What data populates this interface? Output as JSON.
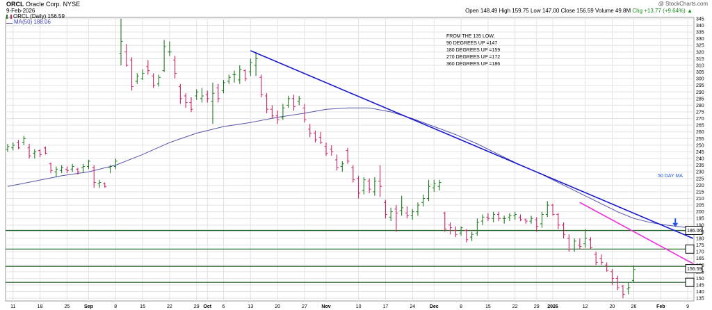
{
  "header": {
    "symbol": "ORCL",
    "company": "Oracle Corp.",
    "exchange": "NYSE",
    "date": "9-Feb-2026",
    "legend_price": "ORCL (Daily) 156.59",
    "legend_ma": "MA(50) 188.06",
    "watermark": "@ StockCharts.com",
    "quote": {
      "open": "Open 148.49",
      "high": "High 159.75",
      "low": "Low 147.00",
      "close": "Close 156.59",
      "volume": "Volume 49.8M",
      "chg": "Chg +13.77 (+9.64%)",
      "arrow": "▲"
    }
  },
  "annotations": {
    "note_lines": [
      "FROM THE 135 LOW,",
      "90 DEGREES UP =147",
      "180 DEGREES UP =159",
      "270 DEGREES UP =172",
      "360 DEGREES UP =186"
    ],
    "ma_label": "50 DAY MA"
  },
  "colors": {
    "up_bar": "#1f7a1f",
    "down_bar": "#cc2266",
    "ma_line": "#5555aa",
    "blue_trendline": "#1a1acc",
    "magenta_trendline": "#ee33dd",
    "support_line": "#1a5c1a",
    "grid": "#e3e3e3",
    "arrow": "#2255dd"
  },
  "chart_data": {
    "type": "ohlc",
    "ylim": [
      133,
      346
    ],
    "y_ticks": [
      135,
      140,
      145,
      150,
      155,
      160,
      165,
      170,
      175,
      180,
      185,
      190,
      195,
      200,
      205,
      210,
      215,
      220,
      225,
      230,
      235,
      240,
      245,
      250,
      255,
      260,
      265,
      270,
      275,
      280,
      285,
      290,
      295,
      300,
      305,
      310,
      315,
      320,
      325,
      330,
      335,
      340,
      345
    ],
    "x_ticks": [
      {
        "label": "11",
        "t": 1
      },
      {
        "label": "18",
        "t": 6
      },
      {
        "label": "25",
        "t": 11
      },
      {
        "label": "Sep",
        "t": 15
      },
      {
        "label": "8",
        "t": 20
      },
      {
        "label": "15",
        "t": 25
      },
      {
        "label": "22",
        "t": 30
      },
      {
        "label": "29",
        "t": 35
      },
      {
        "label": "Oct",
        "t": 37
      },
      {
        "label": "6",
        "t": 40
      },
      {
        "label": "13",
        "t": 45
      },
      {
        "label": "20",
        "t": 50
      },
      {
        "label": "27",
        "t": 55
      },
      {
        "label": "Nov",
        "t": 59
      },
      {
        "label": "10",
        "t": 65
      },
      {
        "label": "17",
        "t": 70
      },
      {
        "label": "24",
        "t": 75
      },
      {
        "label": "Dec",
        "t": 79
      },
      {
        "label": "8",
        "t": 84
      },
      {
        "label": "15",
        "t": 89
      },
      {
        "label": "22",
        "t": 94
      },
      {
        "label": "29",
        "t": 98
      },
      {
        "label": "2026",
        "t": 101
      },
      {
        "label": "12",
        "t": 107
      },
      {
        "label": "20",
        "t": 112
      },
      {
        "label": "26",
        "t": 116
      },
      {
        "label": "Feb",
        "t": 121
      },
      {
        "label": "9",
        "t": 126
      }
    ],
    "series": [
      {
        "name": "ORCL (Daily)",
        "bars": [
          {
            "o": 247,
            "h": 251,
            "l": 245,
            "c": 249
          },
          {
            "o": 248,
            "h": 252,
            "l": 246,
            "c": 250
          },
          {
            "o": 252,
            "h": 254,
            "l": 247,
            "c": 248
          },
          {
            "o": 252,
            "h": 257,
            "l": 250,
            "c": 255
          },
          {
            "o": 248,
            "h": 251,
            "l": 240,
            "c": 242
          },
          {
            "o": 244,
            "h": 247,
            "l": 240,
            "c": 245
          },
          {
            "o": 246,
            "h": 247,
            "l": 241,
            "c": 243
          },
          {
            "o": 248,
            "h": 249,
            "l": 243,
            "c": 244
          },
          {
            "o": 236,
            "h": 237,
            "l": 229,
            "c": 231
          },
          {
            "o": 230,
            "h": 234,
            "l": 226,
            "c": 232
          },
          {
            "o": 231,
            "h": 235,
            "l": 229,
            "c": 233
          },
          {
            "o": 232,
            "h": 234,
            "l": 229,
            "c": 231
          },
          {
            "o": 232,
            "h": 236,
            "l": 230,
            "c": 234
          },
          {
            "o": 232,
            "h": 233,
            "l": 228,
            "c": 230
          },
          {
            "o": 233,
            "h": 236,
            "l": 229,
            "c": 234
          },
          {
            "o": 234,
            "h": 239,
            "l": 232,
            "c": 238
          },
          {
            "o": 233,
            "h": 235,
            "l": 218,
            "c": 222
          },
          {
            "o": 221,
            "h": 224,
            "l": 218,
            "c": 222
          },
          {
            "o": 221,
            "h": 222,
            "l": 218,
            "c": 219
          },
          {
            "o": 233,
            "h": 235,
            "l": 229,
            "c": 234
          },
          {
            "o": 234,
            "h": 240,
            "l": 232,
            "c": 238
          },
          {
            "o": 319,
            "h": 345,
            "l": 310,
            "c": 328
          },
          {
            "o": 320,
            "h": 326,
            "l": 309,
            "c": 310
          },
          {
            "o": 314,
            "h": 316,
            "l": 291,
            "c": 294
          },
          {
            "o": 298,
            "h": 304,
            "l": 296,
            "c": 302
          },
          {
            "o": 300,
            "h": 307,
            "l": 299,
            "c": 304
          },
          {
            "o": 309,
            "h": 314,
            "l": 303,
            "c": 306
          },
          {
            "o": 302,
            "h": 304,
            "l": 293,
            "c": 295
          },
          {
            "o": 296,
            "h": 303,
            "l": 294,
            "c": 301
          },
          {
            "o": 306,
            "h": 329,
            "l": 305,
            "c": 324
          },
          {
            "o": 320,
            "h": 328,
            "l": 317,
            "c": 320
          },
          {
            "o": 314,
            "h": 317,
            "l": 300,
            "c": 304
          },
          {
            "o": 294,
            "h": 296,
            "l": 281,
            "c": 285
          },
          {
            "o": 287,
            "h": 289,
            "l": 278,
            "c": 282
          },
          {
            "o": 282,
            "h": 286,
            "l": 275,
            "c": 277
          },
          {
            "o": 287,
            "h": 292,
            "l": 284,
            "c": 290
          },
          {
            "o": 285,
            "h": 293,
            "l": 282,
            "c": 287
          },
          {
            "o": 288,
            "h": 291,
            "l": 282,
            "c": 285
          },
          {
            "o": 283,
            "h": 297,
            "l": 266,
            "c": 289
          },
          {
            "o": 293,
            "h": 296,
            "l": 282,
            "c": 285
          },
          {
            "o": 291,
            "h": 299,
            "l": 289,
            "c": 297
          },
          {
            "o": 298,
            "h": 303,
            "l": 296,
            "c": 301
          },
          {
            "o": 303,
            "h": 306,
            "l": 297,
            "c": 303
          },
          {
            "o": 299,
            "h": 310,
            "l": 296,
            "c": 307
          },
          {
            "o": 306,
            "h": 307,
            "l": 298,
            "c": 300
          },
          {
            "o": 305,
            "h": 315,
            "l": 302,
            "c": 312
          },
          {
            "o": 310,
            "h": 320,
            "l": 302,
            "c": 315
          },
          {
            "o": 301,
            "h": 303,
            "l": 286,
            "c": 288
          },
          {
            "o": 287,
            "h": 289,
            "l": 274,
            "c": 277
          },
          {
            "o": 277,
            "h": 280,
            "l": 270,
            "c": 272
          },
          {
            "o": 272,
            "h": 276,
            "l": 266,
            "c": 269
          },
          {
            "o": 271,
            "h": 281,
            "l": 269,
            "c": 278
          },
          {
            "o": 280,
            "h": 287,
            "l": 278,
            "c": 285
          },
          {
            "o": 285,
            "h": 288,
            "l": 276,
            "c": 279
          },
          {
            "o": 283,
            "h": 287,
            "l": 280,
            "c": 285
          },
          {
            "o": 278,
            "h": 281,
            "l": 267,
            "c": 269
          },
          {
            "o": 262,
            "h": 266,
            "l": 256,
            "c": 259
          },
          {
            "o": 259,
            "h": 261,
            "l": 252,
            "c": 254
          },
          {
            "o": 256,
            "h": 260,
            "l": 251,
            "c": 252
          },
          {
            "o": 249,
            "h": 252,
            "l": 242,
            "c": 244
          },
          {
            "o": 247,
            "h": 250,
            "l": 242,
            "c": 245
          },
          {
            "o": 239,
            "h": 243,
            "l": 231,
            "c": 233
          },
          {
            "o": 234,
            "h": 238,
            "l": 230,
            "c": 236
          },
          {
            "o": 246,
            "h": 248,
            "l": 236,
            "c": 238
          },
          {
            "o": 233,
            "h": 235,
            "l": 222,
            "c": 224
          },
          {
            "o": 225,
            "h": 227,
            "l": 210,
            "c": 214
          },
          {
            "o": 216,
            "h": 226,
            "l": 213,
            "c": 224
          },
          {
            "o": 223,
            "h": 225,
            "l": 214,
            "c": 217
          },
          {
            "o": 215,
            "h": 226,
            "l": 212,
            "c": 223
          },
          {
            "o": 223,
            "h": 235,
            "l": 211,
            "c": 219
          },
          {
            "o": 207,
            "h": 209,
            "l": 195,
            "c": 198
          },
          {
            "o": 196,
            "h": 203,
            "l": 193,
            "c": 200
          },
          {
            "o": 202,
            "h": 205,
            "l": 185,
            "c": 199
          },
          {
            "o": 201,
            "h": 212,
            "l": 197,
            "c": 203
          },
          {
            "o": 199,
            "h": 204,
            "l": 195,
            "c": 197
          },
          {
            "o": 197,
            "h": 202,
            "l": 194,
            "c": 200
          },
          {
            "o": 200,
            "h": 207,
            "l": 197,
            "c": 205
          },
          {
            "o": 207,
            "h": 213,
            "l": 204,
            "c": 210
          },
          {
            "o": 210,
            "h": 224,
            "l": 208,
            "c": 219
          },
          {
            "o": 218,
            "h": 224,
            "l": 215,
            "c": 221
          },
          {
            "o": 219,
            "h": 224,
            "l": 216,
            "c": 222
          },
          {
            "o": 199,
            "h": 200,
            "l": 185,
            "c": 187
          },
          {
            "o": 190,
            "h": 192,
            "l": 183,
            "c": 188
          },
          {
            "o": 186,
            "h": 189,
            "l": 181,
            "c": 183
          },
          {
            "o": 184,
            "h": 189,
            "l": 182,
            "c": 188
          },
          {
            "o": 186,
            "h": 187,
            "l": 177,
            "c": 179
          },
          {
            "o": 181,
            "h": 185,
            "l": 178,
            "c": 183
          },
          {
            "o": 184,
            "h": 195,
            "l": 182,
            "c": 192
          },
          {
            "o": 193,
            "h": 198,
            "l": 190,
            "c": 196
          },
          {
            "o": 196,
            "h": 199,
            "l": 193,
            "c": 195
          },
          {
            "o": 195,
            "h": 200,
            "l": 192,
            "c": 198
          },
          {
            "o": 198,
            "h": 200,
            "l": 193,
            "c": 195
          },
          {
            "o": 195,
            "h": 197,
            "l": 191,
            "c": 195
          },
          {
            "o": 196,
            "h": 199,
            "l": 193,
            "c": 197
          },
          {
            "o": 197,
            "h": 200,
            "l": 194,
            "c": 198
          },
          {
            "o": 196,
            "h": 198,
            "l": 193,
            "c": 194
          },
          {
            "o": 194,
            "h": 195,
            "l": 191,
            "c": 193
          },
          {
            "o": 193,
            "h": 197,
            "l": 191,
            "c": 195
          },
          {
            "o": 194,
            "h": 196,
            "l": 185,
            "c": 189
          },
          {
            "o": 191,
            "h": 200,
            "l": 188,
            "c": 198
          },
          {
            "o": 198,
            "h": 208,
            "l": 196,
            "c": 205
          },
          {
            "o": 205,
            "h": 206,
            "l": 197,
            "c": 198
          },
          {
            "o": 198,
            "h": 199,
            "l": 187,
            "c": 190
          },
          {
            "o": 190,
            "h": 192,
            "l": 180,
            "c": 183
          },
          {
            "o": 180,
            "h": 183,
            "l": 170,
            "c": 172
          },
          {
            "o": 172,
            "h": 180,
            "l": 170,
            "c": 178
          },
          {
            "o": 175,
            "h": 180,
            "l": 172,
            "c": 174
          },
          {
            "o": 176,
            "h": 187,
            "l": 173,
            "c": 180
          },
          {
            "o": 179,
            "h": 181,
            "l": 172,
            "c": 173
          },
          {
            "o": 168,
            "h": 170,
            "l": 160,
            "c": 162
          },
          {
            "o": 165,
            "h": 168,
            "l": 160,
            "c": 162
          },
          {
            "o": 160,
            "h": 162,
            "l": 155,
            "c": 156
          },
          {
            "o": 155,
            "h": 157,
            "l": 145,
            "c": 150
          },
          {
            "o": 150,
            "h": 152,
            "l": 141,
            "c": 143
          },
          {
            "o": 144,
            "h": 145,
            "l": 135,
            "c": 138
          },
          {
            "o": 142,
            "h": 147,
            "l": 138,
            "c": 143
          },
          {
            "o": 148.49,
            "h": 159.75,
            "l": 147,
            "c": 156.59
          }
        ]
      },
      {
        "name": "MA(50)",
        "points": [
          [
            0,
            219
          ],
          [
            5,
            223
          ],
          [
            10,
            227
          ],
          [
            15,
            230
          ],
          [
            20,
            235
          ],
          [
            25,
            243
          ],
          [
            30,
            252
          ],
          [
            35,
            259
          ],
          [
            40,
            264
          ],
          [
            45,
            267
          ],
          [
            50,
            271
          ],
          [
            55,
            274
          ],
          [
            59,
            277
          ],
          [
            63,
            278
          ],
          [
            67,
            278
          ],
          [
            71,
            275
          ],
          [
            75,
            270
          ],
          [
            79,
            264
          ],
          [
            83,
            258
          ],
          [
            87,
            251
          ],
          [
            91,
            243
          ],
          [
            95,
            235
          ],
          [
            99,
            228
          ],
          [
            103,
            220
          ],
          [
            107,
            212
          ],
          [
            110,
            206
          ],
          [
            113,
            200
          ],
          [
            116,
            195
          ],
          [
            119,
            192
          ],
          [
            122,
            190
          ],
          [
            126,
            188
          ]
        ]
      }
    ],
    "trendlines": [
      {
        "name": "blue-downtrend",
        "from": [
          45,
          321
        ],
        "to": [
          127,
          180
        ]
      },
      {
        "name": "magenta-downtrend",
        "from": [
          106,
          207
        ],
        "to": [
          127,
          161
        ]
      }
    ],
    "support_levels": [
      186,
      172,
      159,
      147
    ],
    "axis_boxes": [
      {
        "label": "186.06",
        "value": 186
      },
      {
        "label": "",
        "value": 172
      },
      {
        "label": "156.59",
        "value": 157.2
      },
      {
        "label": "",
        "value": 147
      }
    ],
    "ma_arrow": {
      "from": 195,
      "to": 189
    }
  }
}
